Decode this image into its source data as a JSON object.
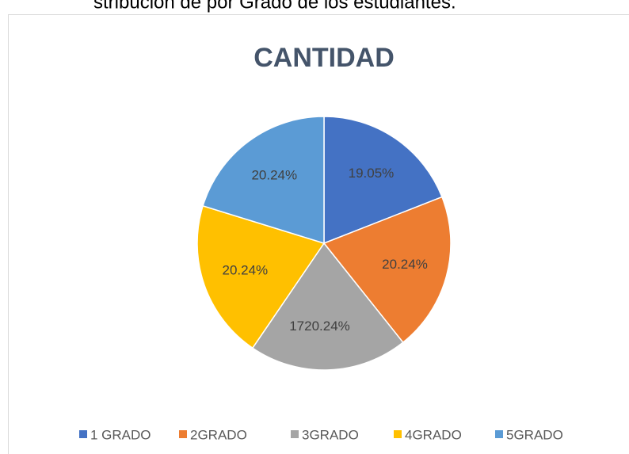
{
  "caption": "stribución de por Grado de los estudiantes.",
  "chart_data": {
    "type": "pie",
    "title": "CANTIDAD",
    "categories": [
      "1 GRADO",
      "2GRADO",
      "3GRADO",
      "4GRADO",
      "5GRADO"
    ],
    "values": [
      19.05,
      20.24,
      20.24,
      20.24,
      20.24
    ],
    "value_labels": [
      "19.05%",
      "20.24%",
      "20.24%",
      "20.24%",
      "20.24%"
    ],
    "colors": [
      "#4472c4",
      "#ed7d31",
      "#a5a5a5",
      "#ffc000",
      "#5b9bd5"
    ],
    "annotation": "17",
    "legend": "bottom"
  }
}
